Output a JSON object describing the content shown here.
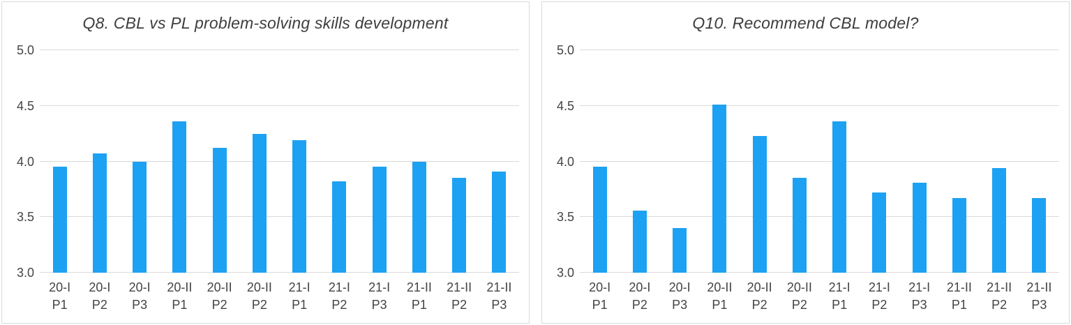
{
  "colors": {
    "bar": "#1da1f2",
    "gridline": "#dadada",
    "panel_border": "#d9d9d9",
    "title_text": "#3e3e3e",
    "axis_text": "#444444",
    "background": "#ffffff"
  },
  "chart_data": [
    {
      "type": "bar",
      "title": "Q8. CBL vs PL problem-solving skills development",
      "categories": [
        "20-I P1",
        "20-I P2",
        "20-I P3",
        "20-II P1",
        "20-II P2",
        "20-II P2",
        "21-I P1",
        "21-I P2",
        "21-I P3",
        "21-II P1",
        "21-II P2",
        "21-II P3"
      ],
      "values": [
        3.95,
        4.07,
        4.0,
        4.36,
        4.12,
        4.25,
        4.19,
        3.82,
        3.95,
        4.0,
        3.85,
        3.91
      ],
      "xlabel": "",
      "ylabel": "",
      "ylim": [
        3.0,
        5.0
      ],
      "yticks": [
        3.0,
        3.5,
        4.0,
        4.5,
        5.0
      ],
      "ytick_format": "one-decimal",
      "grid": true,
      "legend_position": "none"
    },
    {
      "type": "bar",
      "title": "Q10. Recommend CBL model?",
      "categories": [
        "20-I P1",
        "20-I P2",
        "20-I P3",
        "20-II P1",
        "20-II P2",
        "20-II P2",
        "21-I P1",
        "21-I P2",
        "21-I P3",
        "21-II P1",
        "21-II P2",
        "21-II P3"
      ],
      "values": [
        3.95,
        3.56,
        3.4,
        4.51,
        4.23,
        3.85,
        4.36,
        3.72,
        3.81,
        3.67,
        3.94,
        3.67
      ],
      "xlabel": "",
      "ylabel": "",
      "ylim": [
        3.0,
        5.0
      ],
      "yticks": [
        3.0,
        3.5,
        4.0,
        4.5,
        5.0
      ],
      "ytick_format": "one-decimal",
      "grid": true,
      "legend_position": "none"
    }
  ]
}
